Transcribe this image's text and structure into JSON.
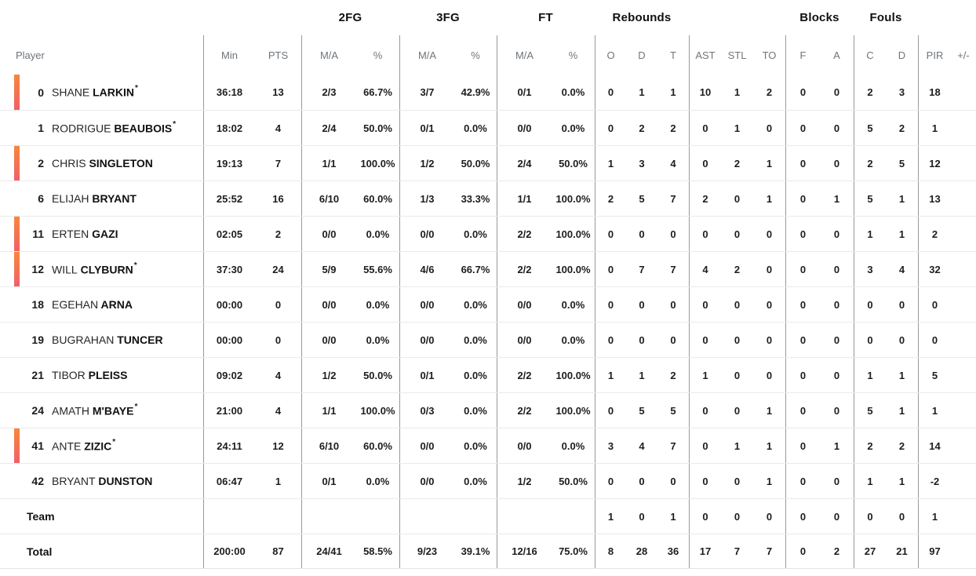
{
  "colors": {
    "accent_bar_top": "#f6873c",
    "accent_bar_bottom": "#f25f68",
    "divider": "#97999b",
    "row_line": "#e9eaeb",
    "header_text": "#70757a",
    "data_text": "#1d1d1b"
  },
  "legend": {
    "starter_mark": "*"
  },
  "header": {
    "groups": {
      "fg2": "2FG",
      "fg3": "3FG",
      "ft": "FT",
      "rebounds": "Rebounds",
      "blocks": "Blocks",
      "fouls": "Fouls"
    },
    "columns": {
      "player": "Player",
      "min": "Min",
      "pts": "PTS",
      "ma": "M/A",
      "pct": "%",
      "reb_o": "O",
      "reb_d": "D",
      "reb_t": "T",
      "ast": "AST",
      "stl": "STL",
      "to": "TO",
      "blk_f": "F",
      "blk_a": "A",
      "foul_c": "C",
      "foul_d": "D",
      "pir": "PIR",
      "plus_minus": "+/-"
    }
  },
  "players": [
    {
      "num": "0",
      "first": "SHANE",
      "last": "LARKIN",
      "starter": true,
      "on_court": true,
      "min": "36:18",
      "pts": "13",
      "fg2_ma": "2/3",
      "fg2_pct": "66.7%",
      "fg3_ma": "3/7",
      "fg3_pct": "42.9%",
      "ft_ma": "0/1",
      "ft_pct": "0.0%",
      "reb_o": "0",
      "reb_d": "1",
      "reb_t": "1",
      "ast": "10",
      "stl": "1",
      "to": "2",
      "blk_f": "0",
      "blk_a": "0",
      "foul_c": "2",
      "foul_d": "3",
      "pir": "18",
      "pm": ""
    },
    {
      "num": "1",
      "first": "RODRIGUE",
      "last": "BEAUBOIS",
      "starter": true,
      "on_court": false,
      "min": "18:02",
      "pts": "4",
      "fg2_ma": "2/4",
      "fg2_pct": "50.0%",
      "fg3_ma": "0/1",
      "fg3_pct": "0.0%",
      "ft_ma": "0/0",
      "ft_pct": "0.0%",
      "reb_o": "0",
      "reb_d": "2",
      "reb_t": "2",
      "ast": "0",
      "stl": "1",
      "to": "0",
      "blk_f": "0",
      "blk_a": "0",
      "foul_c": "5",
      "foul_d": "2",
      "pir": "1",
      "pm": ""
    },
    {
      "num": "2",
      "first": "CHRIS",
      "last": "SINGLETON",
      "starter": false,
      "on_court": true,
      "min": "19:13",
      "pts": "7",
      "fg2_ma": "1/1",
      "fg2_pct": "100.0%",
      "fg3_ma": "1/2",
      "fg3_pct": "50.0%",
      "ft_ma": "2/4",
      "ft_pct": "50.0%",
      "reb_o": "1",
      "reb_d": "3",
      "reb_t": "4",
      "ast": "0",
      "stl": "2",
      "to": "1",
      "blk_f": "0",
      "blk_a": "0",
      "foul_c": "2",
      "foul_d": "5",
      "pir": "12",
      "pm": ""
    },
    {
      "num": "6",
      "first": "ELIJAH",
      "last": "BRYANT",
      "starter": false,
      "on_court": false,
      "min": "25:52",
      "pts": "16",
      "fg2_ma": "6/10",
      "fg2_pct": "60.0%",
      "fg3_ma": "1/3",
      "fg3_pct": "33.3%",
      "ft_ma": "1/1",
      "ft_pct": "100.0%",
      "reb_o": "2",
      "reb_d": "5",
      "reb_t": "7",
      "ast": "2",
      "stl": "0",
      "to": "1",
      "blk_f": "0",
      "blk_a": "1",
      "foul_c": "5",
      "foul_d": "1",
      "pir": "13",
      "pm": ""
    },
    {
      "num": "11",
      "first": "ERTEN",
      "last": "GAZI",
      "starter": false,
      "on_court": true,
      "min": "02:05",
      "pts": "2",
      "fg2_ma": "0/0",
      "fg2_pct": "0.0%",
      "fg3_ma": "0/0",
      "fg3_pct": "0.0%",
      "ft_ma": "2/2",
      "ft_pct": "100.0%",
      "reb_o": "0",
      "reb_d": "0",
      "reb_t": "0",
      "ast": "0",
      "stl": "0",
      "to": "0",
      "blk_f": "0",
      "blk_a": "0",
      "foul_c": "1",
      "foul_d": "1",
      "pir": "2",
      "pm": ""
    },
    {
      "num": "12",
      "first": "WILL",
      "last": "CLYBURN",
      "starter": true,
      "on_court": true,
      "min": "37:30",
      "pts": "24",
      "fg2_ma": "5/9",
      "fg2_pct": "55.6%",
      "fg3_ma": "4/6",
      "fg3_pct": "66.7%",
      "ft_ma": "2/2",
      "ft_pct": "100.0%",
      "reb_o": "0",
      "reb_d": "7",
      "reb_t": "7",
      "ast": "4",
      "stl": "2",
      "to": "0",
      "blk_f": "0",
      "blk_a": "0",
      "foul_c": "3",
      "foul_d": "4",
      "pir": "32",
      "pm": ""
    },
    {
      "num": "18",
      "first": "EGEHAN",
      "last": "ARNA",
      "starter": false,
      "on_court": false,
      "min": "00:00",
      "pts": "0",
      "fg2_ma": "0/0",
      "fg2_pct": "0.0%",
      "fg3_ma": "0/0",
      "fg3_pct": "0.0%",
      "ft_ma": "0/0",
      "ft_pct": "0.0%",
      "reb_o": "0",
      "reb_d": "0",
      "reb_t": "0",
      "ast": "0",
      "stl": "0",
      "to": "0",
      "blk_f": "0",
      "blk_a": "0",
      "foul_c": "0",
      "foul_d": "0",
      "pir": "0",
      "pm": ""
    },
    {
      "num": "19",
      "first": "BUGRAHAN",
      "last": "TUNCER",
      "starter": false,
      "on_court": false,
      "min": "00:00",
      "pts": "0",
      "fg2_ma": "0/0",
      "fg2_pct": "0.0%",
      "fg3_ma": "0/0",
      "fg3_pct": "0.0%",
      "ft_ma": "0/0",
      "ft_pct": "0.0%",
      "reb_o": "0",
      "reb_d": "0",
      "reb_t": "0",
      "ast": "0",
      "stl": "0",
      "to": "0",
      "blk_f": "0",
      "blk_a": "0",
      "foul_c": "0",
      "foul_d": "0",
      "pir": "0",
      "pm": ""
    },
    {
      "num": "21",
      "first": "TIBOR",
      "last": "PLEISS",
      "starter": false,
      "on_court": false,
      "min": "09:02",
      "pts": "4",
      "fg2_ma": "1/2",
      "fg2_pct": "50.0%",
      "fg3_ma": "0/1",
      "fg3_pct": "0.0%",
      "ft_ma": "2/2",
      "ft_pct": "100.0%",
      "reb_o": "1",
      "reb_d": "1",
      "reb_t": "2",
      "ast": "1",
      "stl": "0",
      "to": "0",
      "blk_f": "0",
      "blk_a": "0",
      "foul_c": "1",
      "foul_d": "1",
      "pir": "5",
      "pm": ""
    },
    {
      "num": "24",
      "first": "AMATH",
      "last": "M'BAYE",
      "starter": true,
      "on_court": false,
      "min": "21:00",
      "pts": "4",
      "fg2_ma": "1/1",
      "fg2_pct": "100.0%",
      "fg3_ma": "0/3",
      "fg3_pct": "0.0%",
      "ft_ma": "2/2",
      "ft_pct": "100.0%",
      "reb_o": "0",
      "reb_d": "5",
      "reb_t": "5",
      "ast": "0",
      "stl": "0",
      "to": "1",
      "blk_f": "0",
      "blk_a": "0",
      "foul_c": "5",
      "foul_d": "1",
      "pir": "1",
      "pm": ""
    },
    {
      "num": "41",
      "first": "ANTE",
      "last": "ZIZIC",
      "starter": true,
      "on_court": true,
      "min": "24:11",
      "pts": "12",
      "fg2_ma": "6/10",
      "fg2_pct": "60.0%",
      "fg3_ma": "0/0",
      "fg3_pct": "0.0%",
      "ft_ma": "0/0",
      "ft_pct": "0.0%",
      "reb_o": "3",
      "reb_d": "4",
      "reb_t": "7",
      "ast": "0",
      "stl": "1",
      "to": "1",
      "blk_f": "0",
      "blk_a": "1",
      "foul_c": "2",
      "foul_d": "2",
      "pir": "14",
      "pm": ""
    },
    {
      "num": "42",
      "first": "BRYANT",
      "last": "DUNSTON",
      "starter": false,
      "on_court": false,
      "min": "06:47",
      "pts": "1",
      "fg2_ma": "0/1",
      "fg2_pct": "0.0%",
      "fg3_ma": "0/0",
      "fg3_pct": "0.0%",
      "ft_ma": "1/2",
      "ft_pct": "50.0%",
      "reb_o": "0",
      "reb_d": "0",
      "reb_t": "0",
      "ast": "0",
      "stl": "0",
      "to": "1",
      "blk_f": "0",
      "blk_a": "0",
      "foul_c": "1",
      "foul_d": "1",
      "pir": "-2",
      "pm": ""
    }
  ],
  "summary": [
    {
      "label": "Team",
      "min": "",
      "pts": "",
      "fg2_ma": "",
      "fg2_pct": "",
      "fg3_ma": "",
      "fg3_pct": "",
      "ft_ma": "",
      "ft_pct": "",
      "reb_o": "1",
      "reb_d": "0",
      "reb_t": "1",
      "ast": "0",
      "stl": "0",
      "to": "0",
      "blk_f": "0",
      "blk_a": "0",
      "foul_c": "0",
      "foul_d": "0",
      "pir": "1",
      "pm": ""
    },
    {
      "label": "Total",
      "min": "200:00",
      "pts": "87",
      "fg2_ma": "24/41",
      "fg2_pct": "58.5%",
      "fg3_ma": "9/23",
      "fg3_pct": "39.1%",
      "ft_ma": "12/16",
      "ft_pct": "75.0%",
      "reb_o": "8",
      "reb_d": "28",
      "reb_t": "36",
      "ast": "17",
      "stl": "7",
      "to": "7",
      "blk_f": "0",
      "blk_a": "2",
      "foul_c": "27",
      "foul_d": "21",
      "pir": "97",
      "pm": ""
    }
  ]
}
